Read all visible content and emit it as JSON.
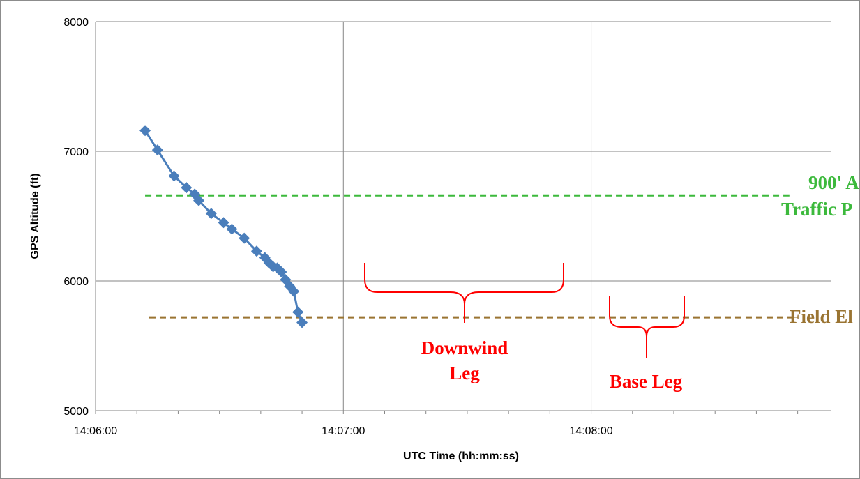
{
  "chart_data": {
    "type": "line",
    "xlabel": "UTC Time (hh:mm:ss)",
    "ylabel": "GPS Altitude (ft)",
    "ylim": [
      5000,
      8000
    ],
    "xlim": [
      "14:06:00",
      "14:08:58"
    ],
    "y_ticks": [
      "5000",
      "6000",
      "7000",
      "8000"
    ],
    "x_ticks": [
      "14:06:00",
      "14:07:00",
      "14:08:00"
    ],
    "grid": true,
    "series": [
      {
        "color": "#4a7ebb",
        "marker": "diamond",
        "x": [
          "14:06:12",
          "14:06:15",
          "14:06:19",
          "14:06:22",
          "14:06:24",
          "14:06:25",
          "14:06:28",
          "14:06:31",
          "14:06:33",
          "14:06:36",
          "14:06:39",
          "14:06:41",
          "14:06:42",
          "14:06:43",
          "14:06:44",
          "14:06:45",
          "14:06:46",
          "14:06:47",
          "14:06:48",
          "14:06:49",
          "14:06:49",
          "14:06:50"
        ],
        "y": [
          7160,
          7010,
          6810,
          6720,
          6670,
          6620,
          6520,
          6450,
          6400,
          6330,
          6230,
          6180,
          6140,
          6110,
          6100,
          6070,
          6010,
          5960,
          5920,
          5760,
          5760,
          5680
        ]
      }
    ],
    "reference_lines": [
      {
        "y": 6660,
        "color": "#3cb93c",
        "style": "dashed",
        "x_range": [
          "14:06:12",
          "14:08:48"
        ]
      },
      {
        "y": 5720,
        "color": "#9a7432",
        "style": "dashed",
        "x_range": [
          "14:06:13",
          "14:08:49"
        ]
      }
    ],
    "annotations": [
      {
        "lines": [
          "Downwind",
          "Leg"
        ],
        "color": "#ff0000"
      },
      {
        "lines": [
          "Base Leg"
        ],
        "color": "#ff0000"
      },
      {
        "lines": [
          "900' A",
          "Traffic P"
        ],
        "color": "#3cb93c"
      },
      {
        "lines": [
          "Field El"
        ],
        "color": "#9a7432"
      }
    ]
  }
}
